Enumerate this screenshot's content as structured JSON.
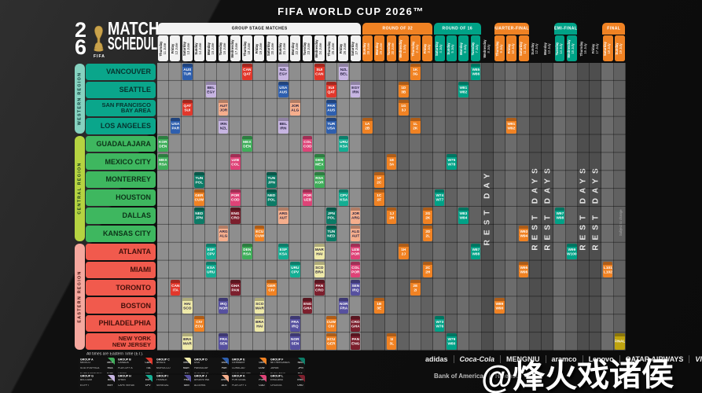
{
  "title": "FIFA WORLD CUP 2026™",
  "logo": {
    "digit_top": "2",
    "digit_bottom": "6",
    "fifa": "FIFA",
    "line1": "MATCH",
    "line2": "SCHEDULE"
  },
  "note": "All times are Eastern Time (ET).",
  "side_note": "Subject to change",
  "watermark": "@烽火戏诸侯",
  "colors": {
    "grid_group_col": "#8E8E8E",
    "grid_ko_col_a": "#6C6C6C",
    "grid_ko_col_b": "#616161",
    "grid_rest_col": "#4E4E4E",
    "stage_orange": "#F08223",
    "stage_teal": "#00A287",
    "group_tab_bg": "#F2F2F2",
    "final_gold": "#BFA30F"
  },
  "stage_tabs": [
    {
      "label": "GROUP STAGE MATCHES",
      "start": 0,
      "end": 16,
      "bg": "#F2F2F2",
      "fg": "#111111"
    },
    {
      "label": "ROUND OF 32",
      "start": 17,
      "end": 22,
      "bg": "#F08223",
      "fg": "#ffffff"
    },
    {
      "label": "ROUND OF 16",
      "start": 23,
      "end": 26,
      "bg": "#00A287",
      "fg": "#ffffff"
    },
    {
      "label": "QUARTER-FINALS",
      "start": 28,
      "end": 30,
      "bg": "#F08223",
      "fg": "#ffffff"
    },
    {
      "label": "SEMI-FINALS",
      "start": 33,
      "end": 34,
      "bg": "#00A287",
      "fg": "#ffffff"
    },
    {
      "label": "FINAL",
      "start": 37,
      "end": 38,
      "bg": "#F08223",
      "fg": "#ffffff"
    }
  ],
  "columns": [
    {
      "day": "Thursday",
      "date": "11 June",
      "stage": "group"
    },
    {
      "day": "Friday",
      "date": "12 June",
      "stage": "group"
    },
    {
      "day": "Saturday",
      "date": "13 June",
      "stage": "group"
    },
    {
      "day": "Sunday",
      "date": "14 June",
      "stage": "group"
    },
    {
      "day": "Monday",
      "date": "15 June",
      "stage": "group"
    },
    {
      "day": "Tuesday",
      "date": "16 June",
      "stage": "group"
    },
    {
      "day": "Wednesday",
      "date": "17 June",
      "stage": "group"
    },
    {
      "day": "Thursday",
      "date": "18 June",
      "stage": "group"
    },
    {
      "day": "Friday",
      "date": "19 June",
      "stage": "group"
    },
    {
      "day": "Saturday",
      "date": "20 June",
      "stage": "group"
    },
    {
      "day": "Sunday",
      "date": "21 June",
      "stage": "group"
    },
    {
      "day": "Monday",
      "date": "22 June",
      "stage": "group"
    },
    {
      "day": "Tuesday",
      "date": "23 June",
      "stage": "group"
    },
    {
      "day": "Wednesday",
      "date": "24 June",
      "stage": "group"
    },
    {
      "day": "Thursday",
      "date": "25 June",
      "stage": "group"
    },
    {
      "day": "Friday",
      "date": "26 June",
      "stage": "group"
    },
    {
      "day": "Saturday",
      "date": "27 June",
      "stage": "group"
    },
    {
      "day": "Sunday",
      "date": "28 June",
      "stage": "r32"
    },
    {
      "day": "Monday",
      "date": "29 June",
      "stage": "r32"
    },
    {
      "day": "Tuesday",
      "date": "30 June",
      "stage": "r32"
    },
    {
      "day": "Wednesday",
      "date": "1 July",
      "stage": "r32"
    },
    {
      "day": "Thursday",
      "date": "2 July",
      "stage": "r32"
    },
    {
      "day": "Friday",
      "date": "3 July",
      "stage": "r32"
    },
    {
      "day": "Saturday",
      "date": "4 July",
      "stage": "r16"
    },
    {
      "day": "Sunday",
      "date": "5 July",
      "stage": "r16"
    },
    {
      "day": "Monday",
      "date": "6 July",
      "stage": "r16"
    },
    {
      "day": "Tuesday",
      "date": "7 July",
      "stage": "r16"
    },
    {
      "day": "Wednesday",
      "date": "8 July",
      "stage": "rest",
      "rest": "REST DAY"
    },
    {
      "day": "Thursday",
      "date": "9 July",
      "stage": "qf"
    },
    {
      "day": "Friday",
      "date": "10 July",
      "stage": "qf"
    },
    {
      "day": "Saturday",
      "date": "11 July",
      "stage": "qf"
    },
    {
      "day": "Sunday",
      "date": "12 July",
      "stage": "rest",
      "rest": "REST DAYS"
    },
    {
      "day": "Monday",
      "date": "13 July",
      "stage": "rest",
      "rest": "REST DAYS"
    },
    {
      "day": "Tuesday",
      "date": "14 July",
      "stage": "sf"
    },
    {
      "day": "Wednesday",
      "date": "15 July",
      "stage": "sf"
    },
    {
      "day": "Thursday",
      "date": "16 July",
      "stage": "rest",
      "rest": "REST DAYS"
    },
    {
      "day": "Friday",
      "date": "17 July",
      "stage": "rest",
      "rest": "REST DAYS"
    },
    {
      "day": "Saturday",
      "date": "18 July",
      "stage": "final"
    },
    {
      "day": "Sunday",
      "date": "19 July",
      "stage": "final"
    }
  ],
  "regions": [
    {
      "name": "WESTERN REGION",
      "bar_color": "#86D2C0",
      "city_color": "#0AA68B",
      "text_color": "#07332e",
      "rows": [
        0,
        3
      ],
      "cities": [
        "VANCOUVER",
        "SEATTLE",
        "SAN FRANCISCO\nBAY AREA",
        "LOS ANGELES"
      ]
    },
    {
      "name": "CENTRAL REGION",
      "bar_color": "#B5D341",
      "city_color": "#3EB75F",
      "text_color": "#0c3318",
      "rows": [
        4,
        9
      ],
      "cities": [
        "GUADALAJARA",
        "MEXICO CITY",
        "MONTERREY",
        "HOUSTON",
        "DALLAS",
        "KANSAS CITY"
      ]
    },
    {
      "name": "EASTERN REGION",
      "bar_color": "#F5A79E",
      "city_color": "#F15A4D",
      "text_color": "#43100b",
      "rows": [
        10,
        15
      ],
      "cities": [
        "ATLANTA",
        "MIAMI",
        "TORONTO",
        "BOSTON",
        "PHILADELPHIA",
        "NEW YORK\nNEW JERSEY"
      ]
    }
  ],
  "group_colors": {
    "A": "#3FAE5A",
    "B": "#E2372B",
    "C": "#EFEAA9",
    "D": "#2E5FAE",
    "E": "#F08223",
    "F": "#0C7B66",
    "G": "#C7B5E2",
    "H": "#14AE93",
    "I": "#56509F",
    "J": "#F5AE8C",
    "K": "#DE4377",
    "L": "#7C1F2D"
  },
  "dark_text_groups": [
    "C",
    "G",
    "J"
  ],
  "matches": [
    [
      0,
      2,
      "D",
      "AUS",
      "TUR"
    ],
    [
      0,
      7,
      "B",
      "CAN",
      "QAT"
    ],
    [
      0,
      10,
      "G",
      "NZL",
      "EGY"
    ],
    [
      0,
      13,
      "B",
      "SUI",
      "CAN"
    ],
    [
      0,
      15,
      "G",
      "NZL",
      "BEL"
    ],
    [
      1,
      4,
      "G",
      "BEL",
      "EGY"
    ],
    [
      1,
      10,
      "D",
      "USA",
      "AUS"
    ],
    [
      1,
      14,
      "B",
      "SUI",
      "QAT"
    ],
    [
      1,
      16,
      "G",
      "EGY",
      "IRN"
    ],
    [
      2,
      2,
      "B",
      "QAT",
      "SUI"
    ],
    [
      2,
      5,
      "J",
      "AUT",
      "JOR"
    ],
    [
      2,
      11,
      "J",
      "JOR",
      "ALG"
    ],
    [
      2,
      14,
      "D",
      "PAR",
      "AUS"
    ],
    [
      3,
      1,
      "D",
      "USA",
      "PAR"
    ],
    [
      3,
      5,
      "G",
      "IRN",
      "NZL"
    ],
    [
      3,
      10,
      "G",
      "BEL",
      "IRN"
    ],
    [
      3,
      14,
      "D",
      "TUR",
      "USA"
    ],
    [
      4,
      0,
      "A",
      "KOR",
      "DEN"
    ],
    [
      4,
      7,
      "A",
      "MEX",
      "DEN"
    ],
    [
      4,
      12,
      "K",
      "COL",
      "COD"
    ],
    [
      4,
      15,
      "H",
      "URU",
      "KSA"
    ],
    [
      5,
      0,
      "A",
      "MEX",
      "RSA"
    ],
    [
      5,
      6,
      "K",
      "UZB",
      "COL"
    ],
    [
      5,
      13,
      "A",
      "DEN",
      "MEX"
    ],
    [
      6,
      3,
      "F",
      "TUN",
      "POL"
    ],
    [
      6,
      9,
      "F",
      "TUN",
      "JPN"
    ],
    [
      6,
      13,
      "A",
      "RSA",
      "KOR"
    ],
    [
      7,
      3,
      "E",
      "GER",
      "CUW"
    ],
    [
      7,
      6,
      "K",
      "POR",
      "COD"
    ],
    [
      7,
      9,
      "F",
      "NED",
      "POL"
    ],
    [
      7,
      12,
      "K",
      "POR",
      "UZB"
    ],
    [
      7,
      15,
      "H",
      "CPV",
      "KSA"
    ],
    [
      8,
      3,
      "F",
      "NED",
      "JPN"
    ],
    [
      8,
      6,
      "L",
      "ENG",
      "CRO"
    ],
    [
      8,
      10,
      "J",
      "ARG",
      "AUT"
    ],
    [
      8,
      14,
      "F",
      "JPN",
      "POL"
    ],
    [
      8,
      16,
      "J",
      "JOR",
      "ARG"
    ],
    [
      9,
      5,
      "J",
      "ARG",
      "ALG"
    ],
    [
      9,
      8,
      "E",
      "ECU",
      "CUW"
    ],
    [
      9,
      14,
      "F",
      "TUN",
      "NED"
    ],
    [
      9,
      16,
      "J",
      "ALG",
      "AUT"
    ],
    [
      10,
      4,
      "H",
      "ESP",
      "CPV"
    ],
    [
      10,
      7,
      "A",
      "DEN",
      "RSA"
    ],
    [
      10,
      10,
      "H",
      "ESP",
      "KSA"
    ],
    [
      10,
      13,
      "C",
      "MAR",
      "HAI"
    ],
    [
      10,
      16,
      "K",
      "UZB",
      "POR"
    ],
    [
      11,
      4,
      "H",
      "KSA",
      "URU"
    ],
    [
      11,
      11,
      "H",
      "URU",
      "CPV"
    ],
    [
      11,
      13,
      "C",
      "SCO",
      "BRA"
    ],
    [
      11,
      16,
      "K",
      "COL",
      "POR"
    ],
    [
      12,
      1,
      "B",
      "CAN",
      "ITA"
    ],
    [
      12,
      6,
      "L",
      "GHA",
      "PAN"
    ],
    [
      12,
      9,
      "E",
      "GER",
      "CIV"
    ],
    [
      12,
      13,
      "L",
      "PAN",
      "CRO"
    ],
    [
      12,
      16,
      "I",
      "SEN",
      "IRQ"
    ],
    [
      13,
      2,
      "C",
      "HAI",
      "SCO"
    ],
    [
      13,
      5,
      "I",
      "IRQ",
      "NOR"
    ],
    [
      13,
      8,
      "C",
      "SCO",
      "MAR"
    ],
    [
      13,
      12,
      "L",
      "ENG",
      "GHA"
    ],
    [
      13,
      15,
      "I",
      "NOR",
      "FRA"
    ],
    [
      14,
      3,
      "E",
      "CIV",
      "ECU"
    ],
    [
      14,
      8,
      "C",
      "BRA",
      "HAI"
    ],
    [
      14,
      11,
      "I",
      "FRA",
      "IRQ"
    ],
    [
      14,
      14,
      "E",
      "CUW",
      "CIV"
    ],
    [
      14,
      16,
      "L",
      "CRO",
      "GHA"
    ],
    [
      15,
      2,
      "C",
      "BRA",
      "MAR"
    ],
    [
      15,
      5,
      "I",
      "FRA",
      "SEN"
    ],
    [
      15,
      11,
      "I",
      "NOR",
      "SEN"
    ],
    [
      15,
      14,
      "E",
      "ECU",
      "GER"
    ],
    [
      15,
      16,
      "L",
      "PAN",
      "ENG"
    ]
  ],
  "knockouts": [
    [
      3,
      17,
      "r32",
      [
        "1A",
        "2B"
      ]
    ],
    [
      6,
      18,
      "r32",
      [
        "1F",
        "2C"
      ]
    ],
    [
      7,
      18,
      "r32",
      [
        "1C",
        "2F"
      ]
    ],
    [
      13,
      18,
      "r32",
      [
        "1B",
        "3E"
      ]
    ],
    [
      5,
      19,
      "r32",
      [
        "1E",
        "3A"
      ]
    ],
    [
      8,
      19,
      "r32",
      [
        "1J",
        "2H"
      ]
    ],
    [
      15,
      19,
      "r32",
      [
        "1I",
        "3L"
      ]
    ],
    [
      1,
      20,
      "r32",
      [
        "1D",
        "3B"
      ]
    ],
    [
      2,
      20,
      "r32",
      [
        "1G",
        "3J"
      ]
    ],
    [
      10,
      20,
      "r32",
      [
        "1H",
        "2J"
      ]
    ],
    [
      0,
      21,
      "r32",
      [
        "1K",
        "3G"
      ]
    ],
    [
      3,
      21,
      "r32",
      [
        "1L",
        "2K"
      ]
    ],
    [
      12,
      21,
      "r32",
      [
        "2E",
        "2I"
      ]
    ],
    [
      8,
      22,
      "r32",
      [
        "2G",
        "2K"
      ]
    ],
    [
      9,
      22,
      "r32",
      [
        "2D",
        "2L"
      ]
    ],
    [
      11,
      22,
      "r32",
      [
        "2C",
        "2H"
      ]
    ],
    [
      7,
      23,
      "r16",
      [
        "W74",
        "W77"
      ]
    ],
    [
      14,
      23,
      "r16",
      [
        "W73",
        "W76"
      ]
    ],
    [
      5,
      24,
      "r16",
      [
        "W75",
        "W78"
      ]
    ],
    [
      15,
      24,
      "r16",
      [
        "W79",
        "W80"
      ]
    ],
    [
      1,
      25,
      "r16",
      [
        "W81",
        "W82"
      ]
    ],
    [
      8,
      25,
      "r16",
      [
        "W83",
        "W84"
      ]
    ],
    [
      0,
      26,
      "r16",
      [
        "W85",
        "W86"
      ]
    ],
    [
      10,
      26,
      "r16",
      [
        "W87",
        "W88"
      ]
    ],
    [
      13,
      28,
      "qf",
      [
        "W89",
        "W90"
      ]
    ],
    [
      3,
      29,
      "qf",
      [
        "W91",
        "W92"
      ]
    ],
    [
      9,
      30,
      "qf",
      [
        "W93",
        "W94"
      ]
    ],
    [
      11,
      30,
      "qf",
      [
        "W95",
        "W96"
      ]
    ],
    [
      8,
      33,
      "sf",
      [
        "W97",
        "W98"
      ]
    ],
    [
      10,
      34,
      "sf",
      [
        "W99",
        "W100"
      ]
    ],
    [
      11,
      37,
      "bronze",
      [
        "L101",
        "L102"
      ]
    ],
    [
      15,
      38,
      "final",
      [
        "FINAL"
      ]
    ]
  ],
  "legend_groups": [
    {
      "letter": "GROUP A",
      "teams": [
        [
          "MEXICO",
          "MEX"
        ],
        [
          "SOUTH AFRICA",
          "RSA"
        ],
        [
          "KOREA REPUBLIC",
          "KOR"
        ],
        [
          "PLAY-OFF D",
          "DEN"
        ]
      ]
    },
    {
      "letter": "GROUP B",
      "teams": [
        [
          "CANADA",
          "CAN"
        ],
        [
          "PLAY-OFF A",
          "ITA"
        ],
        [
          "QATAR",
          "QAT"
        ],
        [
          "SWITZERLAND",
          "SUI"
        ]
      ]
    },
    {
      "letter": "GROUP C",
      "teams": [
        [
          "BRAZIL",
          "BRA"
        ],
        [
          "MOROCCO",
          "MAR"
        ],
        [
          "HAITI",
          "HAI"
        ],
        [
          "SCOTLAND",
          "SCO"
        ]
      ]
    },
    {
      "letter": "GROUP D",
      "teams": [
        [
          "USA",
          "USA"
        ],
        [
          "PARAGUAY",
          "PAR"
        ],
        [
          "AUSTRALIA",
          "AUS"
        ],
        [
          "PLAY-OFF C",
          "TUR"
        ]
      ]
    },
    {
      "letter": "GROUP E",
      "teams": [
        [
          "GERMANY",
          "GER"
        ],
        [
          "CURACAO",
          "CUW"
        ],
        [
          "COTE D'IVOIRE",
          "CIV"
        ],
        [
          "ECUADOR",
          "ECU"
        ]
      ]
    },
    {
      "letter": "GROUP F",
      "teams": [
        [
          "NETHERLANDS",
          "NED"
        ],
        [
          "JAPAN",
          "JPN"
        ],
        [
          "PLAY-OFF B",
          "POL"
        ],
        [
          "TUNISIA",
          "TUN"
        ]
      ]
    },
    {
      "letter": "GROUP G",
      "teams": [
        [
          "BELGIUM",
          "BEL"
        ],
        [
          "EGYPT",
          "EGY"
        ],
        [
          "IRAN",
          "IRN"
        ],
        [
          "NEW ZEALAND",
          "NZL"
        ]
      ]
    },
    {
      "letter": "GROUP H",
      "teams": [
        [
          "SPAIN",
          "ESP"
        ],
        [
          "CAPE VERDE",
          "CPV"
        ],
        [
          "SAUDI ARABIA",
          "KSA"
        ],
        [
          "URUGUAY",
          "URU"
        ]
      ]
    },
    {
      "letter": "GROUP I",
      "teams": [
        [
          "FRANCE",
          "FRA"
        ],
        [
          "SENEGAL",
          "SEN"
        ],
        [
          "PLAY-OFF 2",
          "IRQ"
        ],
        [
          "NORWAY",
          "NOR"
        ]
      ]
    },
    {
      "letter": "GROUP J",
      "teams": [
        [
          "ARGENTINA",
          "ARG"
        ],
        [
          "ALGERIA",
          "ALG"
        ],
        [
          "AUSTRIA",
          "AUT"
        ],
        [
          "JORDAN",
          "JOR"
        ]
      ]
    },
    {
      "letter": "GROUP K",
      "teams": [
        [
          "PORTUGAL",
          "POR"
        ],
        [
          "PLAY-OFF 1",
          "COD"
        ],
        [
          "UZBEKISTAN",
          "UZB"
        ],
        [
          "COLOMBIA",
          "COL"
        ]
      ]
    },
    {
      "letter": "GROUP L",
      "teams": [
        [
          "ENGLAND",
          "ENG"
        ],
        [
          "CROATIA",
          "CRO"
        ],
        [
          "GHANA",
          "GHA"
        ],
        [
          "PANAMA",
          "PAN"
        ]
      ]
    }
  ],
  "sponsors_row1": [
    "adidas",
    "Coca-Cola",
    "MENGNIU",
    "aramco",
    "Lenovo",
    "QATAR AIRWAYS",
    "VISA"
  ],
  "sponsors_row2": [
    "Bank of America",
    "Hisense"
  ]
}
